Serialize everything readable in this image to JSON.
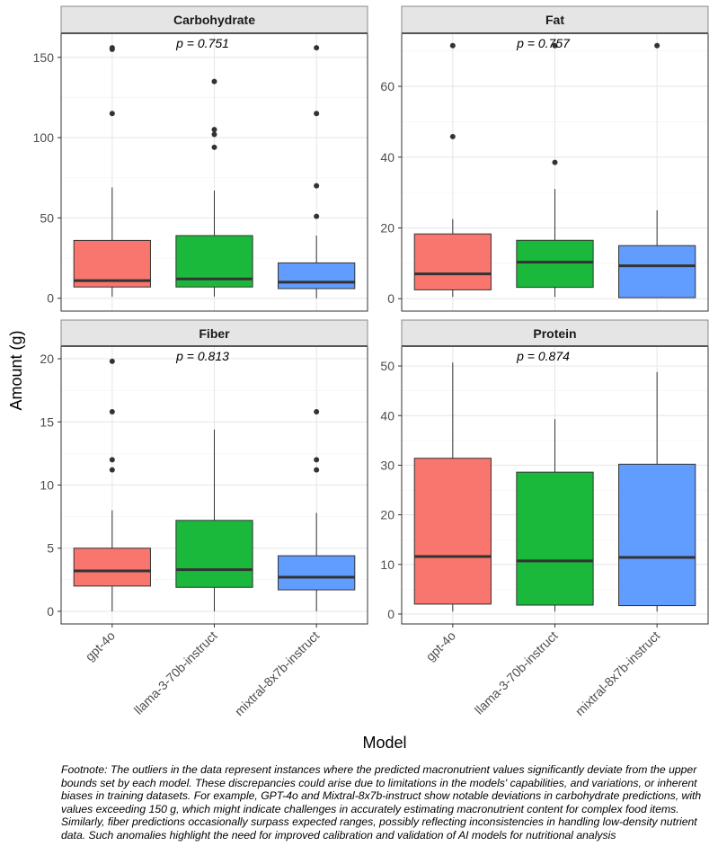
{
  "chart_data": {
    "type": "boxplot",
    "xlabel": "Model",
    "ylabel": "Amount (g)",
    "categories": [
      "gpt-4o",
      "llama-3-70b-instruct",
      "mixtral-8x7b-instruct"
    ],
    "colors": {
      "gpt-4o": "#F8766D",
      "llama-3-70b-instruct": "#1BB93B",
      "mixtral-8x7b-instruct": "#619CFF"
    },
    "panels": [
      {
        "title": "Carbohydrate",
        "pvalue": "p = 0.751",
        "ylim": [
          -8,
          165
        ],
        "yticks": [
          0,
          50,
          100,
          150
        ],
        "boxes": [
          {
            "model": "gpt-4o",
            "min": 1,
            "q1": 7,
            "median": 11,
            "q3": 36,
            "max": 69,
            "outliers": [
              115,
              155,
              156
            ]
          },
          {
            "model": "llama-3-70b-instruct",
            "min": 1,
            "q1": 7,
            "median": 12,
            "q3": 39,
            "max": 67,
            "outliers": [
              94,
              102,
              105,
              135
            ]
          },
          {
            "model": "mixtral-8x7b-instruct",
            "min": 0,
            "q1": 6,
            "median": 10,
            "q3": 22,
            "max": 39,
            "outliers": [
              51,
              70,
              115,
              156
            ]
          }
        ]
      },
      {
        "title": "Fat",
        "pvalue": "p = 0.757",
        "ylim": [
          -3.5,
          75
        ],
        "yticks": [
          0,
          20,
          40,
          60
        ],
        "boxes": [
          {
            "model": "gpt-4o",
            "min": 0.5,
            "q1": 2.5,
            "median": 7,
            "q3": 18.3,
            "max": 22.5,
            "outliers": [
              45.8,
              71.5
            ]
          },
          {
            "model": "llama-3-70b-instruct",
            "min": 0.5,
            "q1": 3.2,
            "median": 10.3,
            "q3": 16.5,
            "max": 31,
            "outliers": [
              38.5,
              71.5
            ]
          },
          {
            "model": "mixtral-8x7b-instruct",
            "min": 0.3,
            "q1": 0.3,
            "median": 9.3,
            "q3": 15,
            "max": 25,
            "outliers": [
              71.5
            ]
          }
        ]
      },
      {
        "title": "Fiber",
        "pvalue": "p = 0.813",
        "ylim": [
          -1,
          21
        ],
        "yticks": [
          0,
          5,
          10,
          15,
          20
        ],
        "boxes": [
          {
            "model": "gpt-4o",
            "min": 0,
            "q1": 2,
            "median": 3.2,
            "q3": 5,
            "max": 8,
            "outliers": [
              11.2,
              12,
              15.8,
              19.8
            ]
          },
          {
            "model": "llama-3-70b-instruct",
            "min": 0,
            "q1": 1.9,
            "median": 3.3,
            "q3": 7.2,
            "max": 14.4,
            "outliers": []
          },
          {
            "model": "mixtral-8x7b-instruct",
            "min": 0,
            "q1": 1.7,
            "median": 2.7,
            "q3": 4.4,
            "max": 7.8,
            "outliers": [
              11.2,
              12,
              15.8
            ]
          }
        ]
      },
      {
        "title": "Protein",
        "pvalue": "p = 0.874",
        "ylim": [
          -2,
          54
        ],
        "yticks": [
          0,
          10,
          20,
          30,
          40,
          50
        ],
        "boxes": [
          {
            "model": "gpt-4o",
            "min": 0.5,
            "q1": 2,
            "median": 11.6,
            "q3": 31.4,
            "max": 50.7,
            "outliers": []
          },
          {
            "model": "llama-3-70b-instruct",
            "min": 0.5,
            "q1": 1.8,
            "median": 10.7,
            "q3": 28.6,
            "max": 39.3,
            "outliers": []
          },
          {
            "model": "mixtral-8x7b-instruct",
            "min": 0.5,
            "q1": 1.7,
            "median": 11.4,
            "q3": 30.2,
            "max": 48.8,
            "outliers": []
          }
        ]
      }
    ]
  },
  "footnote": "Footnote: The outliers in the data represent instances where the predicted macronutrient values significantly deviate from the upper bounds set by each model. These discrepancies could arise due to limitations in the models' capabilities, and variations, or inherent biases in training datasets. For example, GPT-4o and Mixtral-8x7b-instruct show notable deviations in carbohydrate predictions, with values exceeding 150 g, which might indicate challenges in accurately estimating macronutrient content for complex food items. Similarly, fiber predictions occasionally surpass expected ranges, possibly reflecting inconsistencies in handling low-density nutrient data. Such anomalies highlight the need for improved calibration and validation of AI models for nutritional analysis"
}
